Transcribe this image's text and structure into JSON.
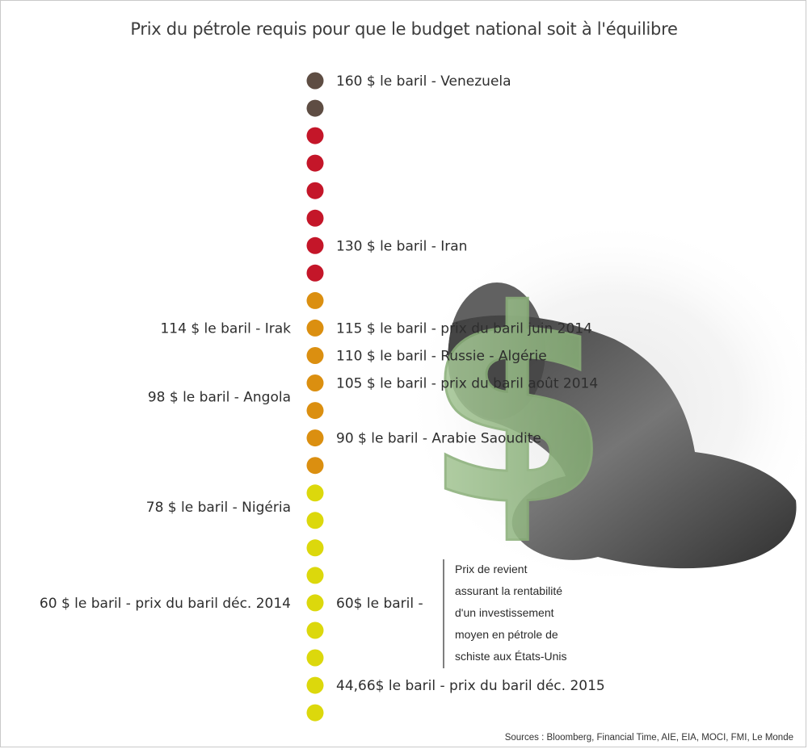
{
  "title": "Prix du pétrole requis pour que le budget national soit à l'équilibre",
  "sources": "Sources : Bloomberg, Financial Time, AIE, EIA, MOCI, FMI, Le Monde",
  "colors": {
    "brown": "#5e4d43",
    "red": "#c41629",
    "orange": "#db8f10",
    "yellow": "#dcd80c"
  },
  "chart_data": {
    "type": "scatter",
    "title": "Prix du pétrole requis pour que le budget national soit à l'équilibre",
    "ylim": [
      44.66,
      160
    ],
    "dots": [
      {
        "color": "brown"
      },
      {
        "color": "brown"
      },
      {
        "color": "red"
      },
      {
        "color": "red"
      },
      {
        "color": "red"
      },
      {
        "color": "red"
      },
      {
        "color": "red"
      },
      {
        "color": "red"
      },
      {
        "color": "orange"
      },
      {
        "color": "orange"
      },
      {
        "color": "orange"
      },
      {
        "color": "orange"
      },
      {
        "color": "orange"
      },
      {
        "color": "orange"
      },
      {
        "color": "orange"
      },
      {
        "color": "yellow"
      },
      {
        "color": "yellow"
      },
      {
        "color": "yellow"
      },
      {
        "color": "yellow"
      },
      {
        "color": "yellow"
      },
      {
        "color": "yellow"
      },
      {
        "color": "yellow"
      },
      {
        "color": "yellow"
      },
      {
        "color": "yellow"
      }
    ],
    "labels_right": [
      {
        "value": 160,
        "dot": 0,
        "text": "160 $ le baril - Venezuela"
      },
      {
        "value": 130,
        "dot": 6,
        "text": "130 $ le baril - Iran"
      },
      {
        "value": 115,
        "dot": 9,
        "text": "115 $ le baril - prix du baril juin 2014"
      },
      {
        "value": 110,
        "dot": 10,
        "text": "110 $ le baril - Russie - Algérie"
      },
      {
        "value": 105,
        "dot": 11,
        "text": "105 $ le baril - prix du baril août 2014"
      },
      {
        "value": 90,
        "dot": 13,
        "text": "90 $ le baril - Arabie Saoudite"
      },
      {
        "value": 60,
        "dot": 19,
        "text": "60$ le baril -"
      },
      {
        "value": 44.66,
        "dot": 22,
        "text": "44,66$ le baril - prix du baril déc. 2015"
      }
    ],
    "labels_left": [
      {
        "value": 114,
        "dot": 9,
        "text": "114 $ le baril - Irak"
      },
      {
        "value": 98,
        "dot": 11,
        "text": "98 $ le baril - Angola",
        "offset": 0.5
      },
      {
        "value": 78,
        "dot": 15,
        "text": "78 $ le baril - Nigéria",
        "offset": 0.5
      },
      {
        "value": 60,
        "dot": 19,
        "text": "60 $ le baril - prix du baril déc. 2014"
      }
    ],
    "annotation": {
      "value": 60,
      "lines": [
        "Prix de revient",
        "assurant la rentabilité",
        "d'un investissement",
        "moyen en pétrole de",
        "schiste aux États-Unis"
      ]
    }
  }
}
